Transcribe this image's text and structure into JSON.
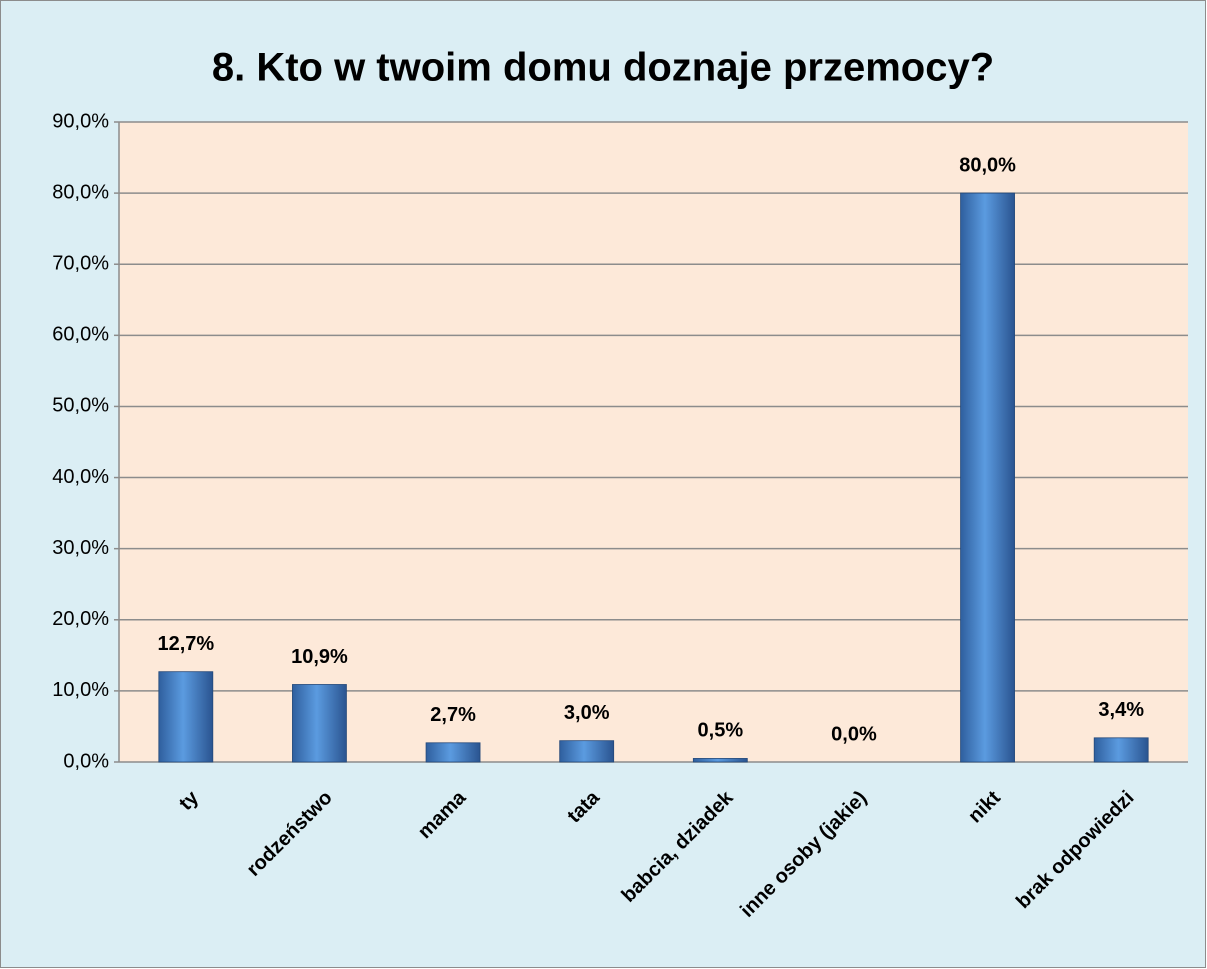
{
  "chart_data": {
    "type": "bar",
    "title": "8. Kto w twoim domu doznaje przemocy?",
    "categories": [
      "ty",
      "rodzeństwo",
      "mama",
      "tata",
      "babcia, dziadek",
      "inne osoby (jakie)",
      "nikt",
      "brak odpowiedzi"
    ],
    "values": [
      12.7,
      10.9,
      2.7,
      3.0,
      0.5,
      0.0,
      80.0,
      3.4
    ],
    "value_labels": [
      "12,7%",
      "10,9%",
      "2,7%",
      "3,0%",
      "0,5%",
      "0,0%",
      "80,0%",
      "3,4%"
    ],
    "color": "#4a86d0",
    "ylim": [
      0,
      90
    ],
    "yticks": [
      {
        "value": 0,
        "label": "0,0%"
      },
      {
        "value": 10,
        "label": "10,0%"
      },
      {
        "value": 20,
        "label": "20,0%"
      },
      {
        "value": 30,
        "label": "30,0%"
      },
      {
        "value": 40,
        "label": "40,0%"
      },
      {
        "value": 50,
        "label": "50,0%"
      },
      {
        "value": 60,
        "label": "60,0%"
      },
      {
        "value": 70,
        "label": "70,0%"
      },
      {
        "value": 80,
        "label": "80,0%"
      },
      {
        "value": 90,
        "label": "90,0%"
      }
    ],
    "grid": true
  }
}
